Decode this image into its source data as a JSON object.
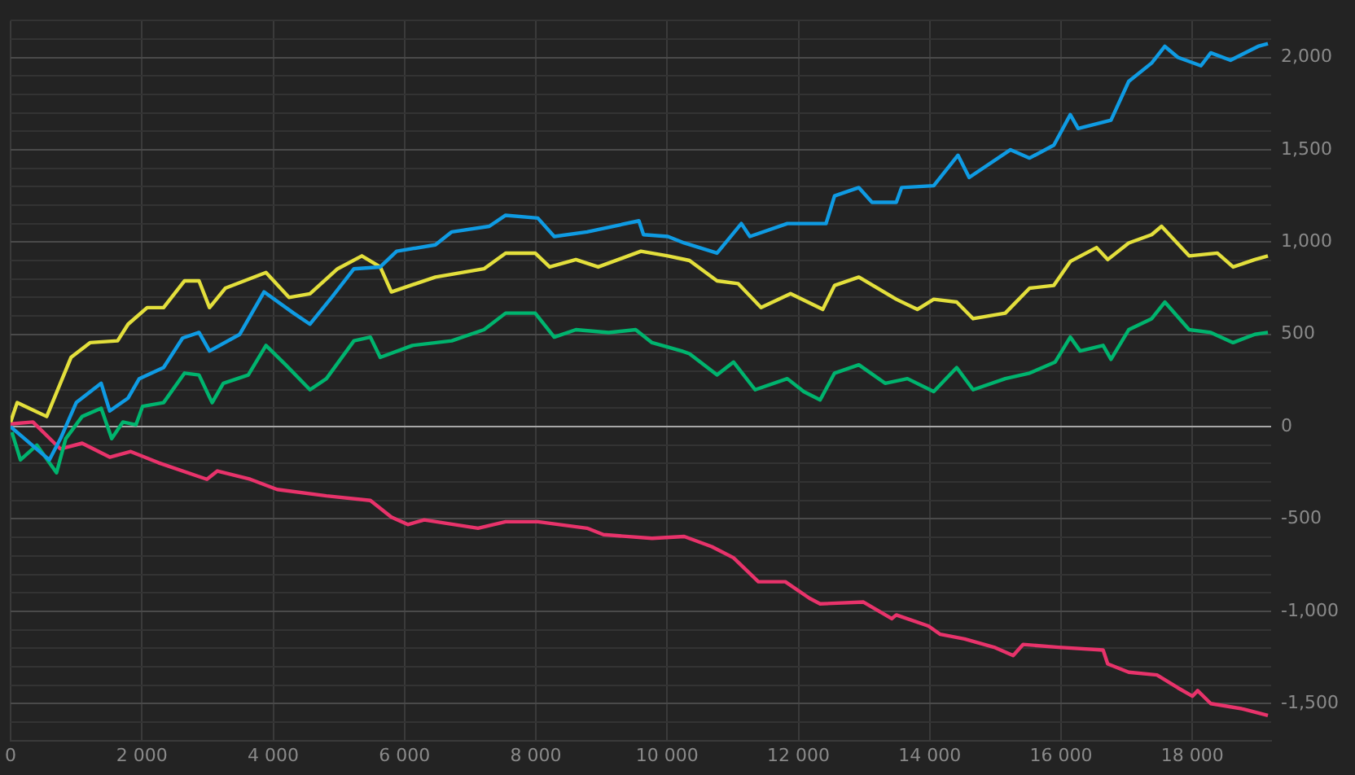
{
  "chart_data": {
    "type": "line",
    "xlim": [
      0,
      19200
    ],
    "ylim": [
      -1700,
      2200
    ],
    "xticks": [
      0,
      {
        "value": 2000,
        "label": "2 000"
      },
      {
        "value": 4000,
        "label": "4 000"
      },
      {
        "value": 6000,
        "label": "6 000"
      },
      {
        "value": 8000,
        "label": "8 000"
      },
      {
        "value": 10000,
        "label": "10 000"
      },
      {
        "value": 12000,
        "label": "12 000"
      },
      {
        "value": 14000,
        "label": "14 000"
      },
      {
        "value": 16000,
        "label": "16 000"
      },
      {
        "value": 18000,
        "label": "18 000"
      }
    ],
    "yticks": [
      {
        "value": -1700,
        "label": null
      },
      {
        "value": -1600,
        "label": null
      },
      {
        "value": -1500,
        "label": "-1,500"
      },
      {
        "value": -1400,
        "label": null
      },
      {
        "value": -1300,
        "label": null
      },
      {
        "value": -1200,
        "label": null
      },
      {
        "value": -1100,
        "label": null
      },
      {
        "value": -1000,
        "label": "-1,000"
      },
      {
        "value": -900,
        "label": null
      },
      {
        "value": -800,
        "label": null
      },
      {
        "value": -700,
        "label": null
      },
      {
        "value": -600,
        "label": null
      },
      {
        "value": -500,
        "label": "-500"
      },
      {
        "value": -400,
        "label": null
      },
      {
        "value": -300,
        "label": null
      },
      {
        "value": -200,
        "label": null
      },
      {
        "value": -100,
        "label": null
      },
      0,
      {
        "value": 100,
        "label": null
      },
      {
        "value": 200,
        "label": null
      },
      {
        "value": 300,
        "label": null
      },
      {
        "value": 400,
        "label": null
      },
      {
        "value": 500,
        "label": "500"
      },
      {
        "value": 600,
        "label": null
      },
      {
        "value": 700,
        "label": null
      },
      {
        "value": 800,
        "label": null
      },
      {
        "value": 900,
        "label": null
      },
      {
        "value": 1000,
        "label": "1,000"
      },
      {
        "value": 1100,
        "label": null
      },
      {
        "value": 1200,
        "label": null
      },
      {
        "value": 1300,
        "label": null
      },
      {
        "value": 1400,
        "label": null
      },
      {
        "value": 1500,
        "label": "1,500"
      },
      {
        "value": 1600,
        "label": null
      },
      {
        "value": 1700,
        "label": null
      },
      {
        "value": 1800,
        "label": null
      },
      {
        "value": 1900,
        "label": null
      },
      {
        "value": 2000,
        "label": "2,000"
      },
      {
        "value": 2100,
        "label": null
      },
      {
        "value": 2200,
        "label": null
      }
    ],
    "grid": true,
    "legend": false,
    "marker": "none",
    "line_style": "solid",
    "series": [
      {
        "color": "#0f9be3",
        "x": [
          0,
          590,
          760,
          1000,
          1380,
          1510,
          1790,
          1960,
          2330,
          2620,
          2870,
          3030,
          3490,
          3860,
          4310,
          4560,
          4890,
          5230,
          5630,
          5880,
          6470,
          6720,
          7290,
          7540,
          8030,
          8280,
          8780,
          9570,
          9640,
          10010,
          10260,
          10760,
          11130,
          11260,
          11830,
          12420,
          12550,
          12920,
          13120,
          13490,
          13570,
          14060,
          14430,
          14600,
          15230,
          15520,
          15890,
          16140,
          16260,
          16760,
          17030,
          17380,
          17580,
          17780,
          18130,
          18280,
          18580,
          19000,
          19150
        ],
        "values": [
          0,
          -180,
          -65,
          130,
          235,
          85,
          155,
          260,
          320,
          480,
          510,
          410,
          500,
          730,
          615,
          555,
          700,
          855,
          865,
          950,
          985,
          1055,
          1085,
          1145,
          1130,
          1030,
          1055,
          1115,
          1040,
          1030,
          995,
          940,
          1100,
          1030,
          1100,
          1100,
          1250,
          1295,
          1215,
          1215,
          1295,
          1305,
          1470,
          1350,
          1500,
          1455,
          1525,
          1690,
          1615,
          1660,
          1870,
          1970,
          2060,
          2000,
          1955,
          2025,
          1985,
          2060,
          2075
        ]
      },
      {
        "color": "#e3df3c",
        "x": [
          0,
          100,
          550,
          920,
          1210,
          1630,
          1790,
          2080,
          2330,
          2650,
          2870,
          3030,
          3270,
          3890,
          4240,
          4560,
          4980,
          5350,
          5630,
          5800,
          6470,
          7210,
          7540,
          7990,
          8210,
          8610,
          8950,
          9600,
          10010,
          10340,
          10760,
          11080,
          11430,
          11880,
          12370,
          12550,
          12920,
          13490,
          13810,
          14060,
          14410,
          14660,
          15150,
          15520,
          15890,
          16140,
          16540,
          16710,
          17030,
          17380,
          17530,
          17950,
          18380,
          18620,
          18950,
          19150
        ],
        "values": [
          25,
          130,
          55,
          375,
          455,
          465,
          555,
          645,
          645,
          790,
          790,
          645,
          750,
          835,
          700,
          720,
          855,
          925,
          865,
          730,
          810,
          855,
          940,
          940,
          865,
          905,
          865,
          950,
          925,
          900,
          790,
          775,
          645,
          720,
          635,
          765,
          810,
          690,
          635,
          690,
          675,
          585,
          615,
          750,
          765,
          895,
          970,
          905,
          995,
          1040,
          1085,
          925,
          940,
          865,
          905,
          925
        ]
      },
      {
        "color": "#00b46e",
        "x": [
          20,
          150,
          400,
          700,
          840,
          1090,
          1380,
          1540,
          1710,
          1910,
          2010,
          2330,
          2650,
          2870,
          3070,
          3240,
          3620,
          3890,
          4190,
          4560,
          4810,
          5230,
          5480,
          5630,
          6120,
          6720,
          7210,
          7540,
          7990,
          8280,
          8610,
          9110,
          9520,
          9770,
          10220,
          10340,
          10760,
          11010,
          11340,
          11830,
          12080,
          12330,
          12550,
          12920,
          13320,
          13660,
          14060,
          14410,
          14660,
          15150,
          15520,
          15910,
          16140,
          16290,
          16640,
          16760,
          17030,
          17380,
          17580,
          17950,
          18280,
          18620,
          18950,
          19150
        ],
        "values": [
          -30,
          -180,
          -100,
          -250,
          -65,
          55,
          100,
          -65,
          25,
          10,
          110,
          130,
          290,
          280,
          130,
          235,
          280,
          440,
          335,
          200,
          260,
          465,
          485,
          375,
          440,
          465,
          525,
          615,
          615,
          485,
          525,
          510,
          525,
          455,
          410,
          395,
          280,
          350,
          200,
          260,
          190,
          145,
          290,
          335,
          235,
          260,
          190,
          320,
          200,
          260,
          290,
          350,
          485,
          410,
          440,
          365,
          525,
          585,
          675,
          525,
          510,
          455,
          500,
          510
        ]
      },
      {
        "color": "#e8336b",
        "x": [
          0,
          340,
          670,
          760,
          1090,
          1510,
          1830,
          2250,
          2990,
          3150,
          3650,
          4060,
          4810,
          5480,
          5800,
          6050,
          6300,
          7120,
          7540,
          8030,
          8780,
          9030,
          9770,
          10260,
          10680,
          11010,
          11390,
          11800,
          12170,
          12330,
          12990,
          13420,
          13490,
          13980,
          14160,
          14530,
          14980,
          15270,
          15420,
          15960,
          16640,
          16710,
          17030,
          17460,
          17780,
          18000,
          18080,
          18280,
          18780,
          19150
        ],
        "values": [
          15,
          25,
          -90,
          -120,
          -90,
          -165,
          -135,
          -195,
          -285,
          -240,
          -285,
          -340,
          -375,
          -400,
          -490,
          -530,
          -505,
          -550,
          -515,
          -515,
          -550,
          -585,
          -605,
          -595,
          -650,
          -710,
          -840,
          -840,
          -930,
          -960,
          -950,
          -1040,
          -1020,
          -1080,
          -1125,
          -1150,
          -1195,
          -1240,
          -1180,
          -1195,
          -1210,
          -1285,
          -1330,
          -1345,
          -1415,
          -1460,
          -1430,
          -1500,
          -1530,
          -1565
        ]
      }
    ]
  }
}
